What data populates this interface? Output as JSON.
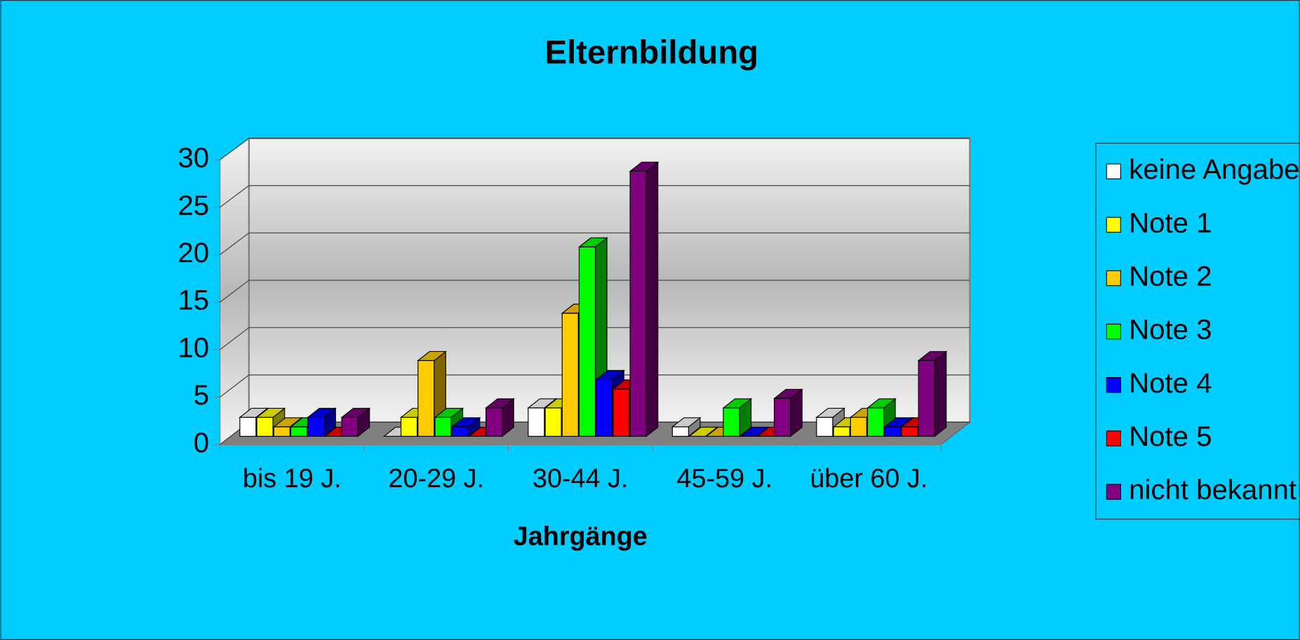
{
  "chart_data": {
    "type": "bar",
    "title": "Elternbildung",
    "x_label": "Jahrgänge",
    "categories": [
      "bis  19 J.",
      "20-29 J.",
      "30-44 J.",
      "45-59 J.",
      "über 60 J."
    ],
    "series": [
      {
        "name": "keine Angabe",
        "color": "#ffffff",
        "values": [
          2,
          0,
          3,
          1,
          2
        ]
      },
      {
        "name": "Note 1",
        "color": "#ffff00",
        "values": [
          2,
          2,
          3,
          0,
          1
        ]
      },
      {
        "name": "Note 2",
        "color": "#ffcc00",
        "values": [
          1,
          8,
          13,
          0,
          2
        ]
      },
      {
        "name": "Note 3",
        "color": "#00ff00",
        "values": [
          1,
          2,
          20,
          3,
          3
        ]
      },
      {
        "name": "Note 4",
        "color": "#0000ff",
        "values": [
          2,
          1,
          6,
          0,
          1
        ]
      },
      {
        "name": "Note 5",
        "color": "#ff0000",
        "values": [
          0,
          0,
          5,
          0,
          1
        ]
      },
      {
        "name": "nicht bekannt",
        "color": "#800080",
        "values": [
          2,
          3,
          28,
          4,
          8
        ]
      }
    ],
    "ylim": [
      0,
      30
    ],
    "yticks": [
      0,
      5,
      10,
      15,
      20,
      25,
      30
    ],
    "grid": true,
    "legend": "right",
    "background": "#00ccff"
  }
}
